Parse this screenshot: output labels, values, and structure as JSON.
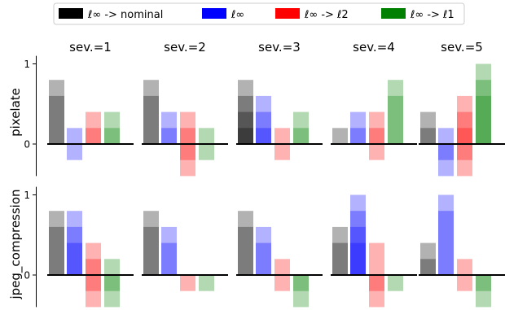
{
  "legend": {
    "placement": "top-center",
    "items": [
      {
        "label": "ℓ∞ -> nominal",
        "color": "#000000"
      },
      {
        "label": "ℓ∞",
        "color": "#0000ff"
      },
      {
        "label": "ℓ∞ -> ℓ2",
        "color": "#ff0000"
      },
      {
        "label": "ℓ∞ -> ℓ1",
        "color": "#008000"
      }
    ]
  },
  "chart_data": {
    "type": "bar",
    "columns": [
      "sev.=1",
      "sev.=2",
      "sev.=3",
      "sev.=4",
      "sev.=5"
    ],
    "rows": [
      "pixelate",
      "jpeg_compression"
    ],
    "series_colors": [
      "#000000",
      "#0000ff",
      "#ff0000",
      "#008000"
    ],
    "yticks": [
      {
        "v": 0,
        "label": "0"
      },
      {
        "v": 1,
        "label": "1"
      }
    ],
    "ylim": [
      -0.4,
      1.1
    ],
    "grid": false,
    "note": "each bar is a stack of semi-transparent layers; values give layer extents from 0",
    "panels": [
      [
        [
          [
            0.6,
            0.8
          ],
          [
            -0.2,
            0.2
          ],
          [
            0.2,
            0.4
          ],
          [
            0.2,
            0.4
          ]
        ],
        [
          [
            0.6,
            0.8
          ],
          [
            0.2,
            0.4
          ],
          [
            0.2,
            0.4,
            -0.2,
            -0.4
          ],
          [
            0.2,
            -0.2
          ]
        ],
        [
          [
            0.2,
            0.4,
            0.6,
            0.8
          ],
          [
            0.2,
            0.4,
            0.6
          ],
          [
            0.2,
            -0.2
          ],
          [
            0.2,
            0.4
          ]
        ],
        [
          [
            0.2
          ],
          [
            0.2,
            0.4
          ],
          [
            0.2,
            0.4,
            -0.2
          ],
          [
            0.6,
            0.8
          ]
        ],
        [
          [
            0.2,
            0.4
          ],
          [
            0.2,
            -0.2,
            -0.4
          ],
          [
            0.2,
            0.4,
            0.6,
            -0.2,
            -0.4
          ],
          [
            0.6,
            0.8,
            1.0
          ]
        ]
      ],
      [
        [
          [
            0.6,
            0.8
          ],
          [
            0.4,
            0.6,
            0.8
          ],
          [
            0.2,
            0.4,
            -0.2,
            -0.4
          ],
          [
            0.2,
            -0.2,
            -0.4
          ]
        ],
        [
          [
            0.6,
            0.8
          ],
          [
            0.4,
            0.6
          ],
          [
            -0.2
          ],
          [
            -0.2
          ]
        ],
        [
          [
            0.6,
            0.8
          ],
          [
            0.4,
            0.6
          ],
          [
            0.2,
            -0.2
          ],
          [
            -0.2,
            -0.4
          ]
        ],
        [
          [
            0.4,
            0.6
          ],
          [
            0.4,
            0.6,
            0.8,
            1.0
          ],
          [
            0.4,
            -0.2,
            -0.4
          ],
          [
            -0.2
          ]
        ],
        [
          [
            0.2,
            0.4
          ],
          [
            0.8,
            1.0
          ],
          [
            0.2,
            -0.2
          ],
          [
            -0.2,
            -0.4
          ]
        ]
      ]
    ]
  }
}
